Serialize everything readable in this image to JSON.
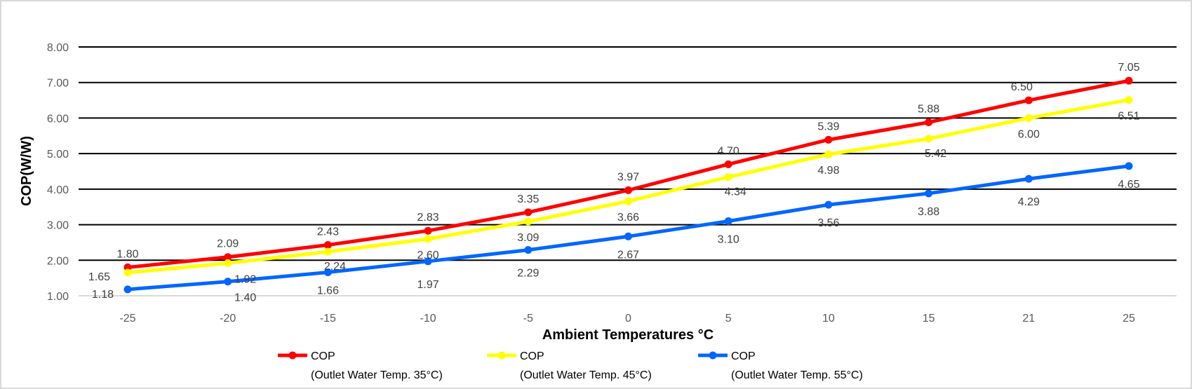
{
  "chart_data": {
    "type": "line",
    "title": "",
    "xlabel": "Ambient Temperatures °C",
    "ylabel": "COP(W/W)",
    "categories": [
      "-25",
      "-20",
      "-15",
      "-10",
      "-5",
      "0",
      "5",
      "10",
      "15",
      "21",
      "25"
    ],
    "ylim": [
      1,
      8
    ],
    "yticks": [
      "1.00",
      "2.00",
      "3.00",
      "4.00",
      "5.00",
      "6.00",
      "7.00",
      "8.00"
    ],
    "grid": true,
    "legend_position": "bottom",
    "series": [
      {
        "name": "COP",
        "name_line2": "(Outlet Water Temp. 35°C)",
        "color": "#ff0000",
        "values": [
          1.8,
          2.09,
          2.43,
          2.83,
          3.35,
          3.97,
          4.7,
          5.39,
          5.88,
          6.5,
          7.05
        ]
      },
      {
        "name": "COP",
        "name_line2": "(Outlet Water Temp. 45°C)",
        "color": "#ffff00",
        "values": [
          1.65,
          1.92,
          2.24,
          2.6,
          3.09,
          3.66,
          4.34,
          4.98,
          5.42,
          6.0,
          6.51
        ]
      },
      {
        "name": "COP",
        "name_line2": "(Outlet Water Temp. 55°C)",
        "color": "#0066ff",
        "values": [
          1.18,
          1.4,
          1.66,
          1.97,
          2.29,
          2.67,
          3.1,
          3.56,
          3.88,
          4.29,
          4.65
        ]
      }
    ]
  }
}
